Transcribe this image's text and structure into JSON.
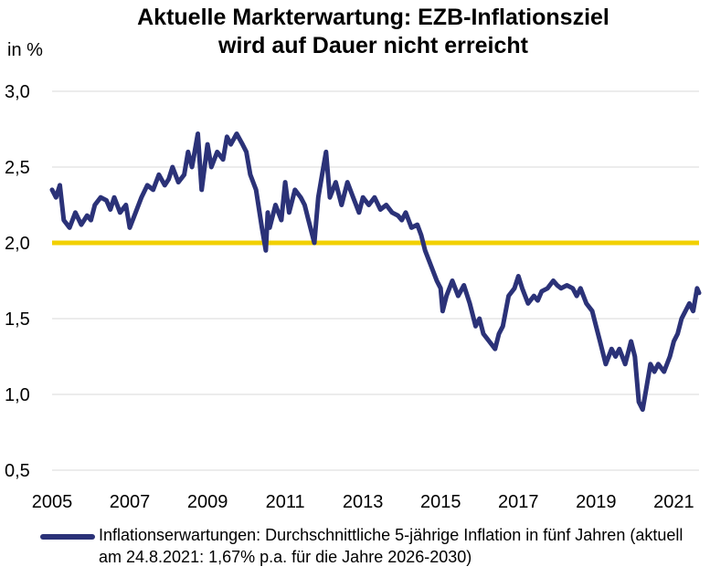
{
  "chart_data": {
    "type": "line",
    "title_line1": "Aktuelle Markterwartung: EZB-Inflationsziel",
    "title_line2": "wird auf Dauer nicht erreicht",
    "ylabel": "in %",
    "xlabel": "",
    "ylim": [
      0.5,
      3.0
    ],
    "xlim": [
      2005.0,
      2021.65
    ],
    "y_ticks": [
      "0,5",
      "1,0",
      "1,5",
      "2,0",
      "2,5",
      "3,0"
    ],
    "y_tick_values": [
      0.5,
      1.0,
      1.5,
      2.0,
      2.5,
      3.0
    ],
    "x_ticks": [
      "2005",
      "2007",
      "2009",
      "2011",
      "2013",
      "2015",
      "2017",
      "2019",
      "2021"
    ],
    "x_tick_values": [
      2005,
      2007,
      2009,
      2011,
      2013,
      2015,
      2017,
      2019,
      2021
    ],
    "grid": "horizontal",
    "reference_line": {
      "value": 2.0,
      "color": "#f2d000"
    },
    "legend_position": "bottom",
    "series": [
      {
        "name": "Inflationserwartungen: Durchschnittliche 5-jährige Inflation in fünf Jahren (aktuell am 24.8.2021: 1,67% p.a. für die Jahre 2026-2030)",
        "color": "#2b3278",
        "x": [
          2005.0,
          2005.1,
          2005.2,
          2005.3,
          2005.45,
          2005.6,
          2005.75,
          2005.9,
          2006.0,
          2006.1,
          2006.25,
          2006.4,
          2006.5,
          2006.6,
          2006.75,
          2006.9,
          2007.0,
          2007.15,
          2007.3,
          2007.45,
          2007.6,
          2007.75,
          2007.9,
          2008.0,
          2008.1,
          2008.25,
          2008.4,
          2008.5,
          2008.6,
          2008.75,
          2008.85,
          2009.0,
          2009.1,
          2009.25,
          2009.4,
          2009.5,
          2009.6,
          2009.75,
          2009.9,
          2010.0,
          2010.1,
          2010.25,
          2010.4,
          2010.5,
          2010.55,
          2010.6,
          2010.75,
          2010.9,
          2011.0,
          2011.1,
          2011.25,
          2011.4,
          2011.5,
          2011.6,
          2011.75,
          2011.85,
          2011.95,
          2012.05,
          2012.15,
          2012.3,
          2012.45,
          2012.6,
          2012.75,
          2012.9,
          2013.0,
          2013.15,
          2013.3,
          2013.45,
          2013.6,
          2013.75,
          2013.9,
          2014.0,
          2014.1,
          2014.25,
          2014.4,
          2014.5,
          2014.6,
          2014.75,
          2014.9,
          2015.0,
          2015.05,
          2015.15,
          2015.3,
          2015.45,
          2015.6,
          2015.75,
          2015.9,
          2016.0,
          2016.1,
          2016.25,
          2016.4,
          2016.5,
          2016.6,
          2016.75,
          2016.9,
          2017.0,
          2017.1,
          2017.25,
          2017.4,
          2017.5,
          2017.6,
          2017.75,
          2017.9,
          2018.0,
          2018.1,
          2018.25,
          2018.4,
          2018.5,
          2018.6,
          2018.75,
          2018.9,
          2019.0,
          2019.1,
          2019.25,
          2019.4,
          2019.5,
          2019.6,
          2019.75,
          2019.9,
          2020.0,
          2020.1,
          2020.2,
          2020.3,
          2020.4,
          2020.5,
          2020.6,
          2020.75,
          2020.9,
          2021.0,
          2021.1,
          2021.2,
          2021.3,
          2021.4,
          2021.5,
          2021.6,
          2021.65
        ],
        "values": [
          2.35,
          2.3,
          2.38,
          2.15,
          2.1,
          2.2,
          2.12,
          2.18,
          2.15,
          2.25,
          2.3,
          2.28,
          2.22,
          2.3,
          2.2,
          2.25,
          2.1,
          2.2,
          2.3,
          2.38,
          2.35,
          2.45,
          2.38,
          2.42,
          2.5,
          2.4,
          2.45,
          2.6,
          2.5,
          2.72,
          2.35,
          2.65,
          2.5,
          2.6,
          2.55,
          2.7,
          2.65,
          2.72,
          2.65,
          2.6,
          2.45,
          2.35,
          2.1,
          1.95,
          2.2,
          2.1,
          2.25,
          2.15,
          2.4,
          2.2,
          2.35,
          2.3,
          2.25,
          2.15,
          2.0,
          2.3,
          2.45,
          2.6,
          2.3,
          2.4,
          2.25,
          2.4,
          2.3,
          2.2,
          2.3,
          2.25,
          2.3,
          2.22,
          2.25,
          2.2,
          2.18,
          2.15,
          2.2,
          2.1,
          2.12,
          2.05,
          1.95,
          1.85,
          1.75,
          1.7,
          1.55,
          1.65,
          1.75,
          1.65,
          1.72,
          1.6,
          1.45,
          1.5,
          1.4,
          1.35,
          1.3,
          1.4,
          1.45,
          1.65,
          1.7,
          1.78,
          1.7,
          1.6,
          1.65,
          1.62,
          1.68,
          1.7,
          1.75,
          1.72,
          1.7,
          1.72,
          1.7,
          1.65,
          1.7,
          1.6,
          1.55,
          1.45,
          1.35,
          1.2,
          1.3,
          1.25,
          1.3,
          1.2,
          1.35,
          1.25,
          0.95,
          0.9,
          1.05,
          1.2,
          1.15,
          1.2,
          1.15,
          1.25,
          1.35,
          1.4,
          1.5,
          1.55,
          1.6,
          1.55,
          1.7,
          1.67
        ]
      }
    ]
  },
  "legend": {
    "label": "Inflationserwartungen: Durchschnittliche 5-jährige Inflation in fünf Jahren (aktuell am 24.8.2021: 1,67% p.a. für die Jahre 2026-2030)"
  }
}
